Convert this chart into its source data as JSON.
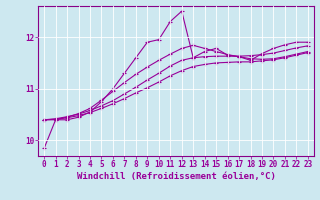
{
  "xlabel": "Windchill (Refroidissement éolien,°C)",
  "background_color": "#cde8f0",
  "grid_color": "#b0d8e8",
  "line_color": "#990099",
  "spine_color": "#880088",
  "xlim": [
    -0.5,
    23.5
  ],
  "ylim": [
    9.7,
    12.6
  ],
  "xticks": [
    0,
    1,
    2,
    3,
    4,
    5,
    6,
    7,
    8,
    9,
    10,
    11,
    12,
    13,
    14,
    15,
    16,
    17,
    18,
    19,
    20,
    21,
    22,
    23
  ],
  "yticks": [
    10,
    11,
    12
  ],
  "series": [
    [
      9.85,
      10.4,
      10.4,
      10.45,
      10.55,
      10.75,
      11.0,
      11.3,
      11.6,
      11.9,
      11.95,
      12.3,
      12.5,
      11.6,
      11.72,
      11.78,
      11.65,
      11.62,
      11.55,
      11.68,
      11.78,
      11.85,
      11.9,
      11.9
    ],
    [
      10.4,
      10.4,
      10.45,
      10.52,
      10.62,
      10.78,
      10.95,
      11.12,
      11.28,
      11.42,
      11.55,
      11.67,
      11.78,
      11.84,
      11.78,
      11.72,
      11.66,
      11.62,
      11.58,
      11.57,
      11.58,
      11.62,
      11.67,
      11.72
    ],
    [
      10.4,
      10.41,
      10.44,
      10.48,
      10.54,
      10.62,
      10.71,
      10.81,
      10.92,
      11.02,
      11.13,
      11.25,
      11.35,
      11.43,
      11.47,
      11.5,
      11.51,
      11.52,
      11.52,
      11.54,
      11.56,
      11.6,
      11.65,
      11.7
    ],
    [
      10.4,
      10.42,
      10.46,
      10.51,
      10.58,
      10.67,
      10.77,
      10.9,
      11.03,
      11.17,
      11.3,
      11.44,
      11.55,
      11.6,
      11.62,
      11.63,
      11.63,
      11.63,
      11.64,
      11.66,
      11.69,
      11.74,
      11.79,
      11.83
    ]
  ],
  "marker": "+",
  "markersize": 3,
  "linewidth": 0.8,
  "xlabel_fontsize": 6.5,
  "tick_fontsize": 5.5
}
